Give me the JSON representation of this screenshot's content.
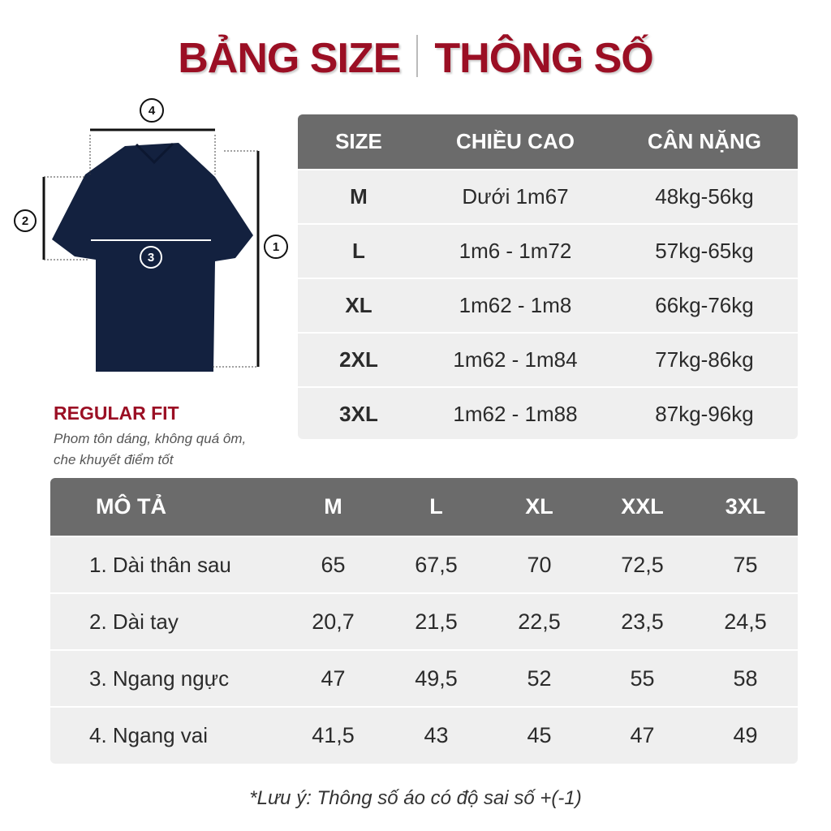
{
  "title": {
    "left": "BẢNG SIZE",
    "right": "THÔNG SỐ"
  },
  "colors": {
    "accent": "#9b0f24",
    "header": "#6b6b6b",
    "row": "#efefef",
    "shirt": "#13213f"
  },
  "diagram": {
    "markers": [
      "1",
      "2",
      "3",
      "4"
    ]
  },
  "fit": {
    "name": "REGULAR FIT",
    "desc_line1": "Phom tôn dáng, không quá ôm,",
    "desc_line2": "che khuyết điểm tốt"
  },
  "size_table": {
    "headers": [
      "SIZE",
      "CHIỀU CAO",
      "CÂN NẶNG"
    ],
    "rows": [
      [
        "M",
        "Dưới 1m67",
        "48kg-56kg"
      ],
      [
        "L",
        "1m6 - 1m72",
        "57kg-65kg"
      ],
      [
        "XL",
        "1m62 - 1m8",
        "66kg-76kg"
      ],
      [
        "2XL",
        "1m62 - 1m84",
        "77kg-86kg"
      ],
      [
        "3XL",
        "1m62 - 1m88",
        "87kg-96kg"
      ]
    ]
  },
  "spec_table": {
    "headers": [
      "MÔ TẢ",
      "M",
      "L",
      "XL",
      "XXL",
      "3XL"
    ],
    "rows": [
      [
        "1. Dài thân sau",
        "65",
        "67,5",
        "70",
        "72,5",
        "75"
      ],
      [
        "2. Dài tay",
        "20,7",
        "21,5",
        "22,5",
        "23,5",
        "24,5"
      ],
      [
        "3. Ngang ngực",
        "47",
        "49,5",
        "52",
        "55",
        "58"
      ],
      [
        "4. Ngang vai",
        "41,5",
        "43",
        "45",
        "47",
        "49"
      ]
    ]
  },
  "note": "*Lưu ý: Thông số áo có độ sai số +(-1)"
}
